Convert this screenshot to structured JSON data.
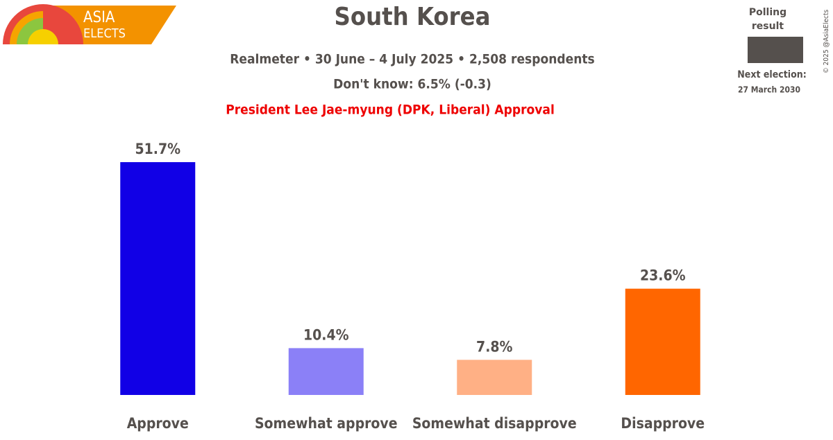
{
  "branding": {
    "logo_top": "ASIA",
    "logo_bottom": "ELECTS",
    "copyright": "© 2025 @AsiaElects"
  },
  "chart_data": {
    "type": "bar",
    "title": "South Korea",
    "subtitle": "Realmeter • 30 June – 4 July 2025 • 2,508 respondents",
    "note": "Don't know: 6.5% (-0.3)",
    "annotation": "President Lee Jae-myung (DPK, Liberal) Approval",
    "annotation_color": "#ee0000",
    "categories": [
      "Approve",
      "Somewhat approve",
      "Somewhat disapprove",
      "Disapprove"
    ],
    "values": [
      51.7,
      10.4,
      7.8,
      23.6
    ],
    "value_labels": [
      "51.7%",
      "10.4%",
      "7.8%",
      "23.6%"
    ],
    "colors": [
      "#1100e6",
      "#8b80f7",
      "#ffb085",
      "#ff6600"
    ],
    "legend": {
      "label": "Polling result",
      "color": "#55504d"
    },
    "next_election_label": "Next election:",
    "next_election_date": "27 March 2030"
  }
}
